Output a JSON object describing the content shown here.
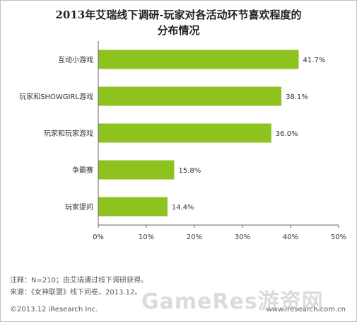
{
  "chart_data": {
    "type": "bar",
    "orientation": "horizontal",
    "title_lines": [
      "2013年艾瑞线下调研-玩家对各活动环节喜欢程度的",
      "分布情况"
    ],
    "categories": [
      "互动小游戏",
      "玩家和SHOWGIRL游戏",
      "玩家和玩家游戏",
      "争霸赛",
      "玩家提问"
    ],
    "values": [
      41.7,
      38.1,
      36.0,
      15.8,
      14.4
    ],
    "value_labels": [
      "41.7%",
      "38.1%",
      "36.0%",
      "15.8%",
      "14.4%"
    ],
    "x_ticks": [
      "0%",
      "10%",
      "20%",
      "30%",
      "40%",
      "50%"
    ],
    "x_tick_values": [
      0,
      10,
      20,
      30,
      40,
      50
    ],
    "xlim": [
      0,
      50
    ],
    "bar_color": "#8dc21f",
    "grid": false,
    "legend": "none"
  },
  "notes": {
    "line1": "注释：N=210；由艾瑞通过线下调研获得。",
    "line2": "来源：《女神联盟》线下问卷，2013.12。"
  },
  "footer": {
    "copyright": "©2013.12 iResearch Inc.",
    "website": "www.iresearch.com.cn"
  },
  "watermark": "GameRes游资网"
}
